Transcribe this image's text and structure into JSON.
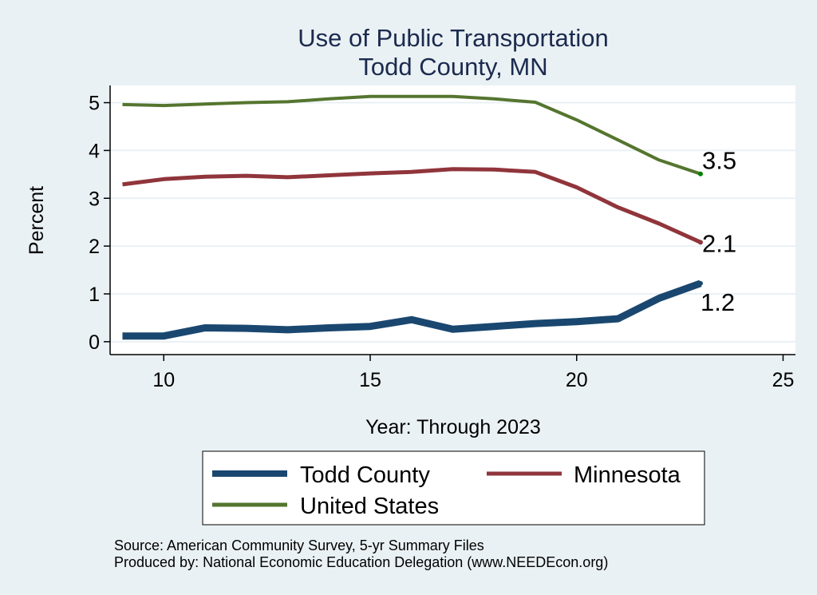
{
  "chart_data": {
    "type": "line",
    "title": "Use of Public Transportation",
    "subtitle": "Todd County, MN",
    "xlabel": "Year: Through 2023",
    "ylabel": "Percent",
    "xlim": [
      8.7,
      25.3
    ],
    "ylim": [
      -0.27,
      5.36
    ],
    "xticks": [
      10,
      15,
      20,
      25
    ],
    "yticks": [
      0,
      1,
      2,
      3,
      4,
      5
    ],
    "grid": "horizontal",
    "x": [
      9,
      10,
      11,
      12,
      13,
      14,
      15,
      16,
      17,
      18,
      19,
      20,
      21,
      22,
      23
    ],
    "series": [
      {
        "name": "Todd County",
        "color": "#1a476f",
        "values": [
          0.12,
          0.12,
          0.29,
          0.28,
          0.25,
          0.29,
          0.32,
          0.46,
          0.26,
          0.32,
          0.38,
          0.42,
          0.48,
          0.91,
          1.22
        ],
        "end_label": "1.2"
      },
      {
        "name": "Minnesota",
        "color": "#90353b",
        "values": [
          3.29,
          3.4,
          3.45,
          3.47,
          3.44,
          3.48,
          3.52,
          3.55,
          3.61,
          3.6,
          3.55,
          3.23,
          2.81,
          2.47,
          2.08
        ],
        "end_label": "2.1"
      },
      {
        "name": "United States",
        "color": "#55752f",
        "values": [
          4.96,
          4.94,
          4.97,
          5.0,
          5.02,
          5.08,
          5.13,
          5.13,
          5.13,
          5.08,
          5.01,
          4.64,
          4.22,
          3.8,
          3.51
        ],
        "end_label": "3.5"
      }
    ],
    "legend": {
      "position": "bottom",
      "entries": [
        "Todd County",
        "Minnesota",
        "United States"
      ]
    },
    "notes": [
      "Source: American Community Survey, 5-yr Summary Files",
      "Produced by: National Economic Education Delegation (www.NEEDEcon.org)"
    ]
  }
}
